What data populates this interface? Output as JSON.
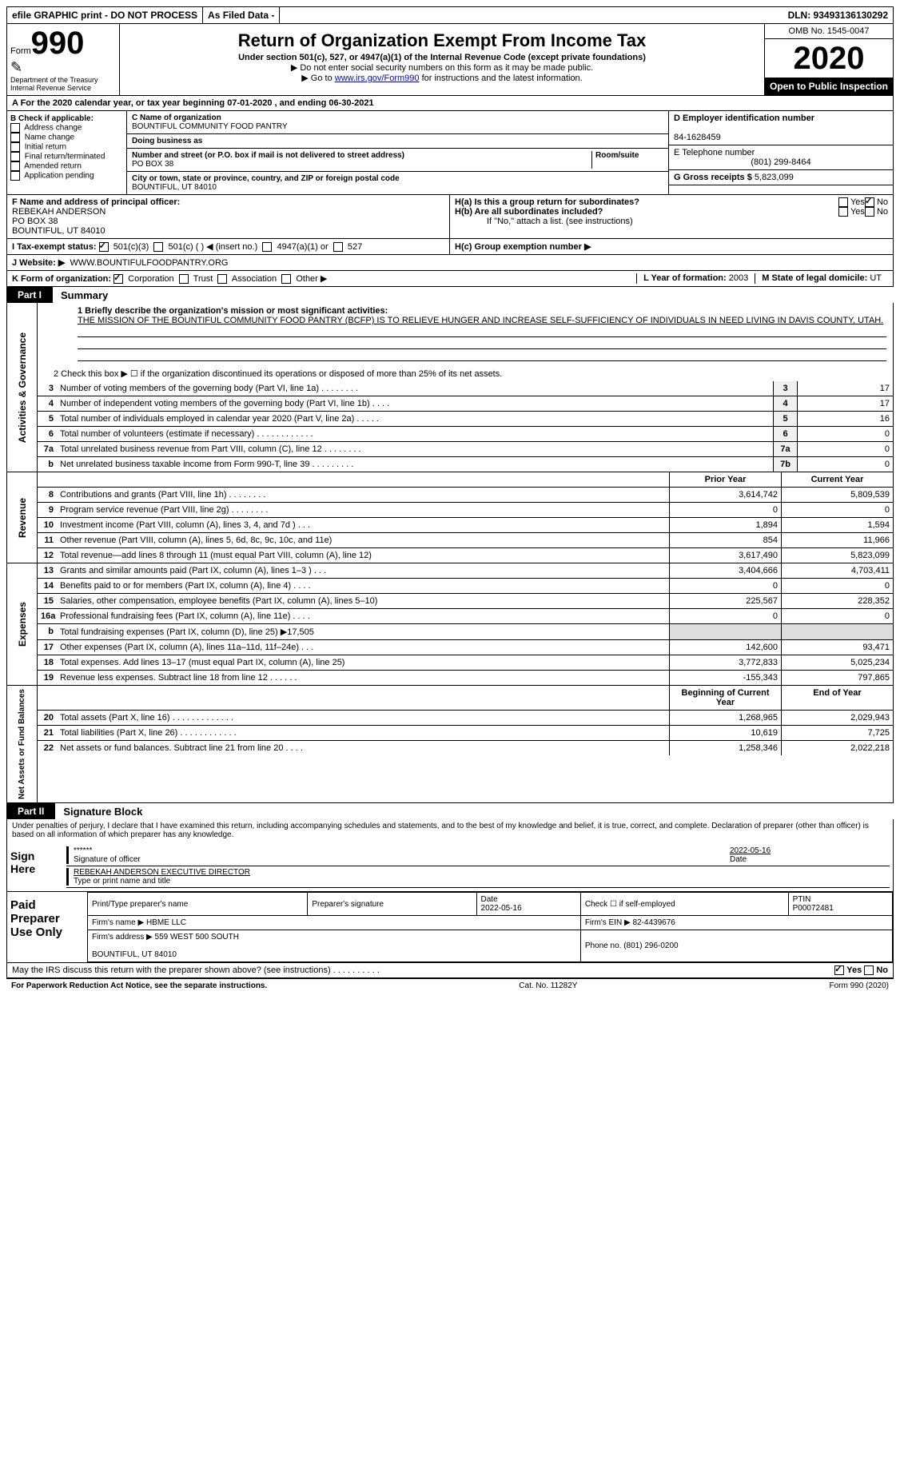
{
  "top_bar": {
    "efile": "efile GRAPHIC print - DO NOT PROCESS",
    "as_filed": "As Filed Data -",
    "dln": "DLN: 93493136130292"
  },
  "header": {
    "form_label": "Form",
    "form_number": "990",
    "dept": "Department of the Treasury",
    "irs": "Internal Revenue Service",
    "title": "Return of Organization Exempt From Income Tax",
    "subtitle": "Under section 501(c), 527, or 4947(a)(1) of the Internal Revenue Code (except private foundations)",
    "note1": "▶ Do not enter social security numbers on this form as it may be made public.",
    "note2_pre": "▶ Go to ",
    "note2_link": "www.irs.gov/Form990",
    "note2_post": " for instructions and the latest information.",
    "omb": "OMB No. 1545-0047",
    "year": "2020",
    "public": "Open to Public Inspection"
  },
  "section_a": "A   For the 2020 calendar year, or tax year beginning 07-01-2020   , and ending 06-30-2021",
  "col_b": {
    "title": "B Check if applicable:",
    "items": [
      "Address change",
      "Name change",
      "Initial return",
      "Final return/terminated",
      "Amended return",
      "Application pending"
    ]
  },
  "col_c": {
    "name_label": "C Name of organization",
    "name": "BOUNTIFUL COMMUNITY FOOD PANTRY",
    "dba_label": "Doing business as",
    "addr_label": "Number and street (or P.O. box if mail is not delivered to street address)",
    "room_label": "Room/suite",
    "addr": "PO BOX 38",
    "city_label": "City or town, state or province, country, and ZIP or foreign postal code",
    "city": "BOUNTIFUL, UT  84010"
  },
  "col_d": {
    "ein_label": "D Employer identification number",
    "ein": "84-1628459",
    "phone_label": "E Telephone number",
    "phone": "(801) 299-8464",
    "gross_label": "G Gross receipts $",
    "gross": "5,823,099"
  },
  "f_officer": {
    "label": "F  Name and address of principal officer:",
    "name": "REBEKAH ANDERSON",
    "addr1": "PO BOX 38",
    "addr2": "BOUNTIFUL, UT  84010"
  },
  "h": {
    "a": "H(a)  Is this a group return for subordinates?",
    "b": "H(b)  Are all subordinates included?",
    "b_note": "If \"No,\" attach a list. (see instructions)",
    "c": "H(c)  Group exemption number ▶",
    "yes": "Yes",
    "no": "No"
  },
  "i_status": {
    "label": "I   Tax-exempt status:",
    "opts": [
      "501(c)(3)",
      "501(c) (   ) ◀ (insert no.)",
      "4947(a)(1) or",
      "527"
    ]
  },
  "j_website": {
    "label": "J   Website: ▶",
    "value": "WWW.BOUNTIFULFOODPANTRY.ORG"
  },
  "k_form": {
    "label": "K Form of organization:",
    "opts": [
      "Corporation",
      "Trust",
      "Association",
      "Other ▶"
    ]
  },
  "l_year": {
    "label": "L Year of formation:",
    "value": "2003"
  },
  "m_state": {
    "label": "M State of legal domicile:",
    "value": "UT"
  },
  "part1": {
    "tab": "Part I",
    "title": "Summary"
  },
  "mission": {
    "label": "1  Briefly describe the organization's mission or most significant activities:",
    "text": "THE MISSION OF THE BOUNTIFUL COMMUNITY FOOD PANTRY (BCFP) IS TO RELIEVE HUNGER AND INCREASE SELF-SUFFICIENCY OF INDIVIDUALS IN NEED LIVING IN DAVIS COUNTY, UTAH."
  },
  "line2": "2   Check this box ▶ ☐  if the organization discontinued its operations or disposed of more than 25% of its net assets.",
  "gov_lines": [
    {
      "n": "3",
      "t": "Number of voting members of the governing body (Part VI, line 1a)   .    .    .    .    .    .    .    .",
      "box": "3",
      "v": "17"
    },
    {
      "n": "4",
      "t": "Number of independent voting members of the governing body (Part VI, line 1b)   .    .    .    .",
      "box": "4",
      "v": "17"
    },
    {
      "n": "5",
      "t": "Total number of individuals employed in calendar year 2020 (Part V, line 2a)   .    .    .    .    .",
      "box": "5",
      "v": "16"
    },
    {
      "n": "6",
      "t": "Total number of volunteers (estimate if necessary)   .    .    .    .    .    .    .    .    .    .    .    .",
      "box": "6",
      "v": "0"
    },
    {
      "n": "7a",
      "t": "Total unrelated business revenue from Part VIII, column (C), line 12   .    .    .    .    .    .    .    .",
      "box": "7a",
      "v": "0"
    },
    {
      "n": "b",
      "t": "Net unrelated business taxable income from Form 990-T, line 39   .    .    .    .    .    .    .    .    .",
      "box": "7b",
      "v": "0"
    }
  ],
  "col_headers": {
    "prior": "Prior Year",
    "current": "Current Year"
  },
  "rev_lines": [
    {
      "n": "8",
      "t": "Contributions and grants (Part VIII, line 1h)   .    .    .    .    .    .    .    .",
      "c1": "3,614,742",
      "c2": "5,809,539"
    },
    {
      "n": "9",
      "t": "Program service revenue (Part VIII, line 2g)   .    .    .    .    .    .    .    .",
      "c1": "0",
      "c2": "0"
    },
    {
      "n": "10",
      "t": "Investment income (Part VIII, column (A), lines 3, 4, and 7d )   .    .    .",
      "c1": "1,894",
      "c2": "1,594"
    },
    {
      "n": "11",
      "t": "Other revenue (Part VIII, column (A), lines 5, 6d, 8c, 9c, 10c, and 11e)",
      "c1": "854",
      "c2": "11,966"
    },
    {
      "n": "12",
      "t": "Total revenue—add lines 8 through 11 (must equal Part VIII, column (A), line 12)",
      "c1": "3,617,490",
      "c2": "5,823,099"
    }
  ],
  "exp_lines": [
    {
      "n": "13",
      "t": "Grants and similar amounts paid (Part IX, column (A), lines 1–3 )   .    .    .",
      "c1": "3,404,666",
      "c2": "4,703,411"
    },
    {
      "n": "14",
      "t": "Benefits paid to or for members (Part IX, column (A), line 4)   .    .    .    .",
      "c1": "0",
      "c2": "0"
    },
    {
      "n": "15",
      "t": "Salaries, other compensation, employee benefits (Part IX, column (A), lines 5–10)",
      "c1": "225,567",
      "c2": "228,352"
    },
    {
      "n": "16a",
      "t": "Professional fundraising fees (Part IX, column (A), line 11e)   .    .    .    .",
      "c1": "0",
      "c2": "0"
    },
    {
      "n": "b",
      "t": "Total fundraising expenses (Part IX, column (D), line 25) ▶17,505",
      "c1": "",
      "c2": "",
      "gray": true
    },
    {
      "n": "17",
      "t": "Other expenses (Part IX, column (A), lines 11a–11d, 11f–24e)   .    .    .",
      "c1": "142,600",
      "c2": "93,471"
    },
    {
      "n": "18",
      "t": "Total expenses. Add lines 13–17 (must equal Part IX, column (A), line 25)",
      "c1": "3,772,833",
      "c2": "5,025,234"
    },
    {
      "n": "19",
      "t": "Revenue less expenses. Subtract line 18 from line 12   .    .    .    .    .    .",
      "c1": "-155,343",
      "c2": "797,865"
    }
  ],
  "net_headers": {
    "c1": "Beginning of Current Year",
    "c2": "End of Year"
  },
  "net_lines": [
    {
      "n": "20",
      "t": "Total assets (Part X, line 16)   .    .    .    .    .    .    .    .    .    .    .    .    .",
      "c1": "1,268,965",
      "c2": "2,029,943"
    },
    {
      "n": "21",
      "t": "Total liabilities (Part X, line 26)   .    .    .    .    .    .    .    .    .    .    .    .",
      "c1": "10,619",
      "c2": "7,725"
    },
    {
      "n": "22",
      "t": "Net assets or fund balances. Subtract line 21 from line 20   .    .    .    .",
      "c1": "1,258,346",
      "c2": "2,022,218"
    }
  ],
  "vert_labels": {
    "gov": "Activities & Governance",
    "rev": "Revenue",
    "exp": "Expenses",
    "net": "Net Assets or Fund Balances"
  },
  "part2": {
    "tab": "Part II",
    "title": "Signature Block"
  },
  "sig_text": "Under penalties of perjury, I declare that I have examined this return, including accompanying schedules and statements, and to the best of my knowledge and belief, it is true, correct, and complete. Declaration of preparer (other than officer) is based on all information of which preparer has any knowledge.",
  "sign_here": "Sign Here",
  "sig": {
    "stars": "******",
    "sig_label": "Signature of officer",
    "date": "2022-05-16",
    "date_label": "Date",
    "name": "REBEKAH ANDERSON  EXECUTIVE DIRECTOR",
    "name_label": "Type or print name and title"
  },
  "paid": {
    "label": "Paid Preparer Use Only",
    "h1": "Print/Type preparer's name",
    "h2": "Preparer's signature",
    "h3": "Date",
    "h3v": "2022-05-16",
    "h4": "Check ☐ if self-employed",
    "h5": "PTIN",
    "h5v": "P00072481",
    "firm_name_label": "Firm's name    ▶",
    "firm_name": "HBME LLC",
    "firm_ein_label": "Firm's EIN ▶",
    "firm_ein": "82-4439676",
    "firm_addr_label": "Firm's address ▶",
    "firm_addr": "559 WEST 500 SOUTH\n\nBOUNTIFUL, UT  84010",
    "phone_label": "Phone no.",
    "phone": "(801) 296-0200"
  },
  "discuss": "May the IRS discuss this return with the preparer shown above? (see instructions)   .    .    .    .    .    .    .    .    .    .",
  "footer": {
    "left": "For Paperwork Reduction Act Notice, see the separate instructions.",
    "mid": "Cat. No. 11282Y",
    "right": "Form 990 (2020)"
  }
}
